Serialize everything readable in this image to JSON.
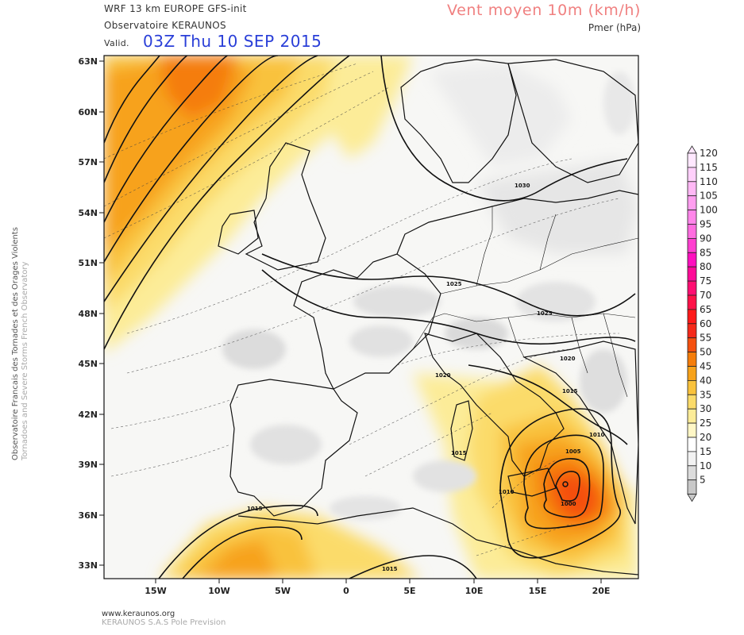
{
  "header": {
    "model_line": "WRF 13 km EUROPE  GFS-init",
    "observatory": "Observatoire KERAUNOS",
    "valid_label": "Valid.",
    "valid_date": "03Z Thu 10 SEP 2015",
    "variable": "Vent moyen 10m (km/h)",
    "sub_variable": "Pmer (hPa)"
  },
  "side": {
    "line1": "Observatoire Francais des Tornades et des Orages Violents",
    "line2": "Tornadoes and Severe Storms French Observatory"
  },
  "footer": {
    "url": "www.keraunos.org",
    "company": "KERAUNOS S.A.S Pole Prevision"
  },
  "axes": {
    "lat_labels": [
      "63N",
      "60N",
      "57N",
      "54N",
      "51N",
      "48N",
      "45N",
      "42N",
      "39N",
      "36N",
      "33N"
    ],
    "lon_labels": [
      "15W",
      "10W",
      "5W",
      "0",
      "5E",
      "10E",
      "15E",
      "20E"
    ]
  },
  "isobar_labels": [
    "1030",
    "1025",
    "1025",
    "1020",
    "1020",
    "1015",
    "1015",
    "1015",
    "1015",
    "1010",
    "1010",
    "1005",
    "1000"
  ],
  "colorbar": {
    "values": [
      "120",
      "115",
      "110",
      "105",
      "100",
      "95",
      "90",
      "85",
      "80",
      "75",
      "70",
      "65",
      "60",
      "55",
      "50",
      "45",
      "40",
      "35",
      "30",
      "25",
      "20",
      "15",
      "10",
      "5"
    ],
    "colors": [
      "#ffe8ff",
      "#ffd0fb",
      "#ffb8f5",
      "#ff9ef0",
      "#ff86ea",
      "#ff6de0",
      "#ff3fd0",
      "#ff10bf",
      "#ff0b98",
      "#ff0e72",
      "#ff1148",
      "#ff1a1a",
      "#f52a1a",
      "#f5500f",
      "#f57d0a",
      "#f7a21a",
      "#f9c23c",
      "#fbdb6a",
      "#fcec98",
      "#fff7c6",
      "#ffffff",
      "#f2f2f2",
      "#dcdcdc",
      "#c8c8c8"
    ]
  }
}
